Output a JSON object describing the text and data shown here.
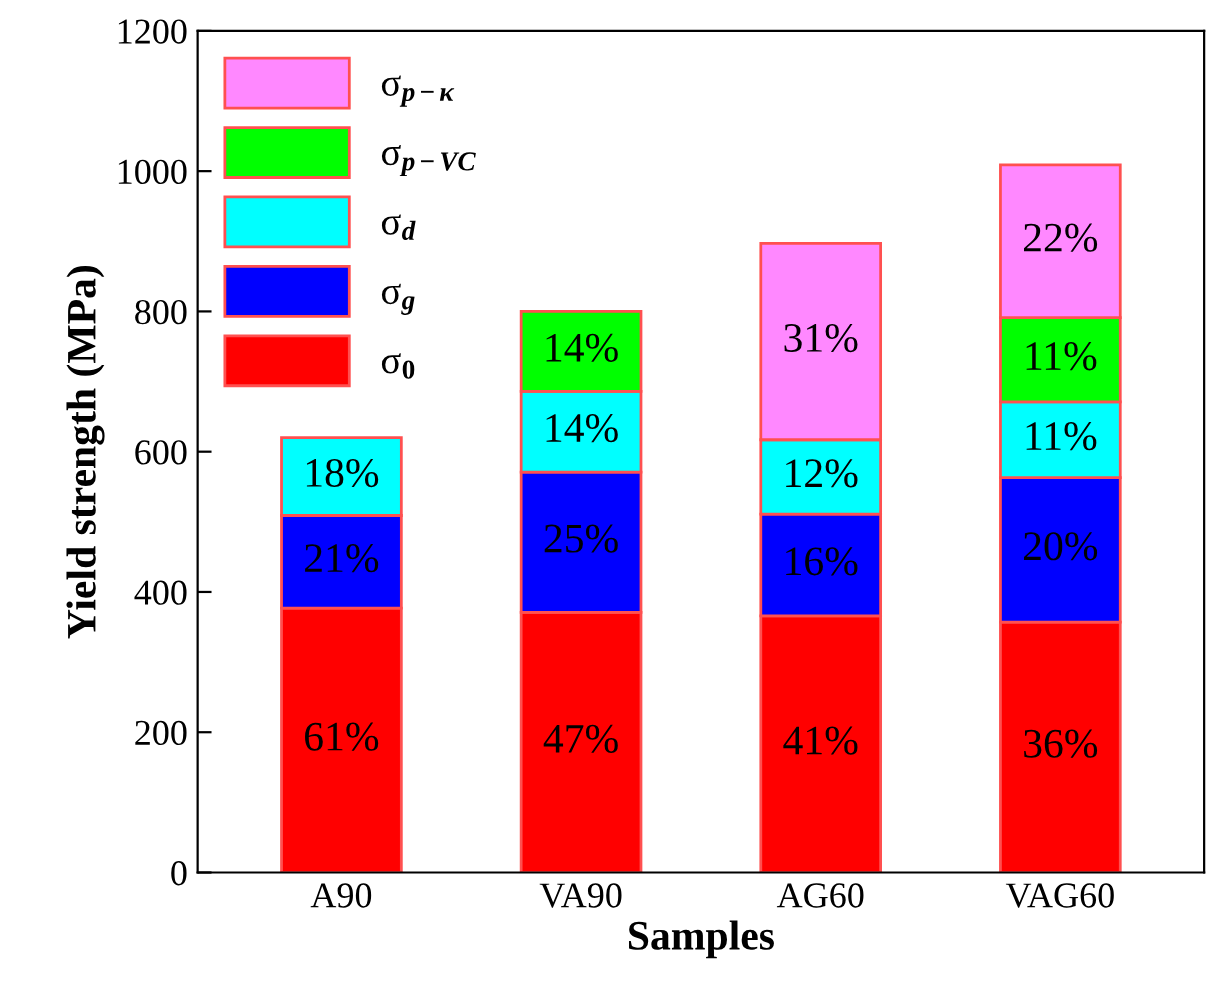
{
  "chart_data": {
    "type": "bar",
    "stacked": true,
    "xlabel": "Samples",
    "ylabel": "Yield strength (MPa)",
    "categories": [
      "A90",
      "VA90",
      "AG60",
      "VAG60"
    ],
    "series": [
      {
        "name": "σ$_{0}$",
        "color": "#ff0000",
        "values": [
          377,
          371,
          366,
          357
        ]
      },
      {
        "name": "σ$_{g}$",
        "color": "#0000ff",
        "values": [
          132,
          200,
          145,
          206
        ]
      },
      {
        "name": "σ$_{d}$",
        "color": "#00ffff",
        "values": [
          111,
          115,
          106,
          108
        ]
      },
      {
        "name": "σ$_{p−VC}$",
        "color": "#00ff00",
        "values": [
          null,
          114,
          null,
          120
        ]
      },
      {
        "name": "σ$_{p−κ}$",
        "color": "#ff88ff",
        "values": [
          null,
          null,
          280,
          218
        ]
      }
    ],
    "annotations": [
      "61%",
      "21%",
      "18%",
      "47%",
      "25%",
      "14%",
      "14%",
      "41%",
      "16%",
      "12%",
      "31%",
      "36%",
      "20%",
      "11%",
      "11%",
      "22%"
    ],
    "ylim": [
      0,
      1200
    ],
    "yticks": [
      0,
      200,
      400,
      600,
      800,
      1000,
      1200
    ],
    "legend": "top left",
    "grid": false
  }
}
